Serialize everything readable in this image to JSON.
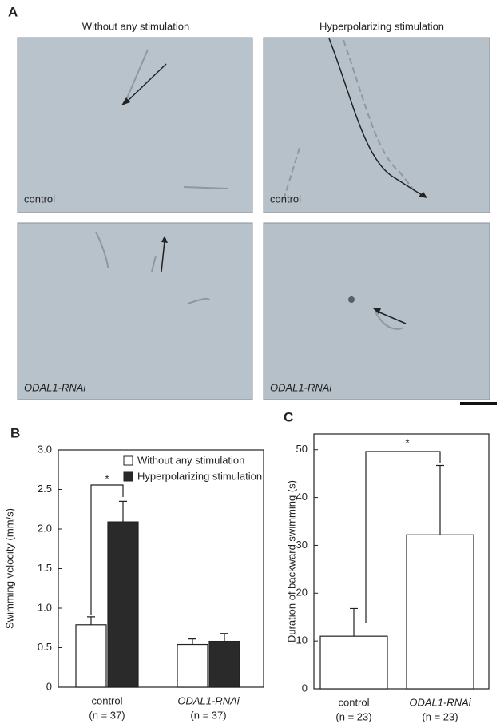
{
  "panel_a": {
    "label": "A",
    "columns": [
      "Without any stimulation",
      "Hyperpolarizing stimulation"
    ],
    "images": [
      "control",
      "control",
      "ODAL1-RNAi",
      "ODAL1-RNAi"
    ]
  },
  "chart_data": [
    {
      "type": "bar",
      "label": "B",
      "ylabel": "Swimming velocity (mm/s)",
      "categories": [
        "control",
        "ODAL1-RNAi"
      ],
      "sample_sizes": [
        "(n = 37)",
        "(n = 37)"
      ],
      "series": [
        {
          "name": "Without any stimulation",
          "color": "#ffffff",
          "values": [
            0.79,
            0.54
          ],
          "errors": [
            0.1,
            0.07
          ]
        },
        {
          "name": "Hyperpolarizing stimulation",
          "color": "#2a2a2a",
          "values": [
            2.09,
            0.58
          ],
          "errors": [
            0.26,
            0.1
          ]
        }
      ],
      "ylim": [
        0,
        3
      ],
      "yticks": [
        0,
        0.5,
        {
          "value": 1,
          "label": "1.0"
        },
        1.5,
        {
          "value": 2,
          "label": "2.0"
        },
        2.5,
        {
          "value": 3,
          "label": "3.0"
        }
      ],
      "annotation": "*",
      "legend": "upper right"
    },
    {
      "type": "bar",
      "label": "C",
      "ylabel": "Duration of backward swimming (s)",
      "categories": [
        "control",
        "ODAL1-RNAi"
      ],
      "sample_sizes": [
        "(n = 23)",
        "(n = 23)"
      ],
      "series": [
        {
          "color": "#ffffff",
          "values": [
            11,
            32.2
          ],
          "errors": [
            5.8,
            14.5
          ]
        }
      ],
      "ylim": [
        0,
        53.3
      ],
      "yticks": [
        0,
        10,
        20,
        30,
        40,
        50
      ],
      "annotation": "*"
    }
  ]
}
